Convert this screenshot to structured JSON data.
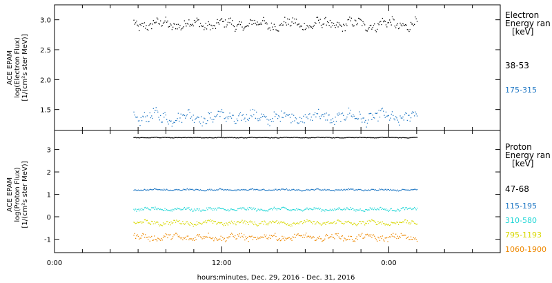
{
  "colors": {
    "black": "#000000",
    "blue": "#1f77c4",
    "cyan": "#1fd6d6",
    "yellow": "#d8d800",
    "orange": "#ee8800"
  },
  "chart_data": [
    {
      "type": "scatter",
      "panel": "electron",
      "ylabel_lines": [
        "ACE EPAM",
        "log(Electron Flux)",
        "[1/(cm²s ster MeV)]"
      ],
      "ylim": [
        1.15,
        3.25
      ],
      "yticks": [
        "1.5",
        "2.0",
        "2.5",
        "3.0"
      ],
      "legend_title": [
        "Electron",
        "Energy ran",
        "[keV]"
      ],
      "series": [
        {
          "name": "38-53",
          "color_key": "black",
          "x_range_h": [
            17,
            78
          ],
          "y_mean": 2.93,
          "y_spread": 0.13
        },
        {
          "name": "175-315",
          "color_key": "blue",
          "x_range_h": [
            17,
            78
          ],
          "y_mean": 1.38,
          "y_spread": 0.15
        }
      ]
    },
    {
      "type": "scatter",
      "panel": "proton",
      "ylabel_lines": [
        "ACE EPAM",
        "log(Proton Flux)",
        "[1/(cm²s ster MeV)]"
      ],
      "ylim": [
        -1.6,
        3.85
      ],
      "yticks": [
        "-1",
        "0",
        "1",
        "2",
        "3"
      ],
      "legend_title": [
        "Proton",
        "Energy ran",
        "[keV]"
      ],
      "series": [
        {
          "name": "47-68",
          "color_key": "black",
          "x_range_h": [
            17,
            78
          ],
          "y_mean": 3.55,
          "y_spread": 0.02
        },
        {
          "name": "115-195",
          "color_key": "blue",
          "x_range_h": [
            17,
            78
          ],
          "y_mean": 1.22,
          "y_spread": 0.05
        },
        {
          "name": "310-580",
          "color_key": "cyan",
          "x_range_h": [
            17,
            78
          ],
          "y_mean": 0.35,
          "y_spread": 0.1
        },
        {
          "name": "795-1193",
          "color_key": "yellow",
          "x_range_h": [
            17,
            78
          ],
          "y_mean": -0.25,
          "y_spread": 0.14
        },
        {
          "name": "1060-1900",
          "color_key": "orange",
          "x_range_h": [
            17,
            78
          ],
          "y_mean": -0.9,
          "y_spread": 0.2
        }
      ]
    }
  ],
  "x_axis": {
    "hours_span": [
      0,
      96
    ],
    "major_ticks": [
      {
        "h": 0,
        "label": "0:00"
      },
      {
        "h": 36,
        "label": "12:00"
      },
      {
        "h": 72,
        "label": "0:00"
      }
    ],
    "minor_step_h": 6,
    "xlabel": "hours:minutes, Dec. 29, 2016 - Dec. 31, 2016"
  }
}
